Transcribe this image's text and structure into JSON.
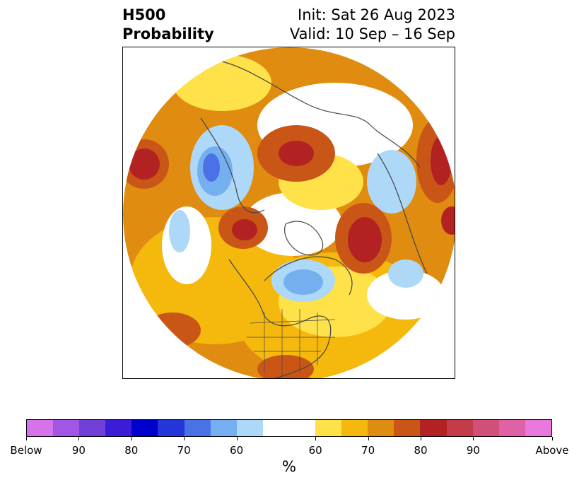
{
  "header": {
    "title_line1": "H500",
    "title_line2": "Probability",
    "init_text": "Init: Sat 26 Aug 2023",
    "valid_text": "Valid: 10 Sep – 16 Sep"
  },
  "map": {
    "projection": "north-polar-stereographic",
    "regions": [
      {
        "name": "below-normal",
        "colors": [
          "#add8f8",
          "#74aff0",
          "#4a72e6"
        ]
      },
      {
        "name": "above-normal",
        "colors": [
          "#ffe14a",
          "#f4b90c",
          "#e08c10",
          "#c95616",
          "#b22222"
        ]
      }
    ]
  },
  "colorbar": {
    "colors": [
      "#d673ea",
      "#a156e4",
      "#7040d9",
      "#3c1cd6",
      "#0000cc",
      "#2436d8",
      "#4a72e6",
      "#74aff0",
      "#add8f8",
      "#ffffff",
      "#ffe14a",
      "#f4b90c",
      "#e08c10",
      "#c95616",
      "#b22222",
      "#c43c4a",
      "#d0507a",
      "#df62a6",
      "#e878dc"
    ],
    "tick_labels": [
      "Below",
      "90",
      "80",
      "70",
      "60",
      "60",
      "70",
      "80",
      "90",
      "Above"
    ],
    "label": "%"
  }
}
